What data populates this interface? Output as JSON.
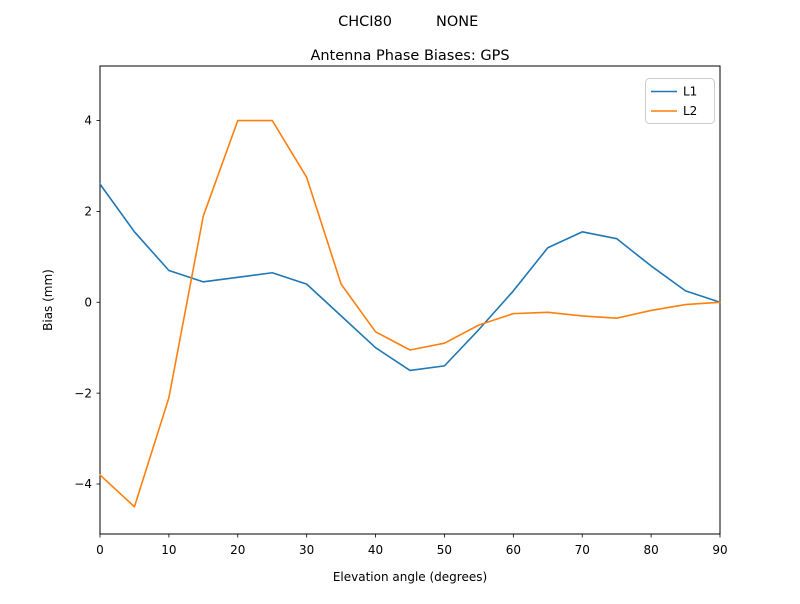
{
  "chart_data": {
    "type": "line",
    "suptitle_left": "CHCI80",
    "suptitle_right": "NONE",
    "title": "Antenna Phase Biases: GPS",
    "xlabel": "Elevation angle (degrees)",
    "ylabel": "Bias (mm)",
    "x": [
      0,
      5,
      10,
      15,
      20,
      25,
      30,
      35,
      40,
      45,
      50,
      55,
      60,
      65,
      70,
      75,
      80,
      85,
      90
    ],
    "series": [
      {
        "name": "L1",
        "color": "#1f77b4",
        "values": [
          2.6,
          1.55,
          0.7,
          0.45,
          0.55,
          0.65,
          0.4,
          -0.3,
          -1.0,
          -1.5,
          -1.4,
          -0.6,
          0.25,
          1.2,
          1.55,
          1.4,
          0.8,
          0.25,
          0.0
        ]
      },
      {
        "name": "L2",
        "color": "#ff7f0e",
        "values": [
          -3.8,
          -4.5,
          -2.1,
          1.9,
          4.0,
          4.0,
          2.75,
          0.4,
          -0.65,
          -1.05,
          -0.9,
          -0.5,
          -0.25,
          -0.22,
          -0.3,
          -0.35,
          -0.18,
          -0.05,
          0.0
        ]
      }
    ],
    "xlim": [
      0,
      90
    ],
    "ylim": [
      -5.1,
      5.2
    ],
    "xticks": [
      0,
      10,
      20,
      30,
      40,
      50,
      60,
      70,
      80,
      90
    ],
    "xtick_labels": [
      "0",
      "10",
      "20",
      "30",
      "40",
      "50",
      "60",
      "70",
      "80",
      "90"
    ],
    "yticks": [
      -4,
      -2,
      0,
      2,
      4
    ],
    "ytick_labels": [
      "−4",
      "−2",
      "0",
      "2",
      "4"
    ],
    "grid": false,
    "legend": {
      "position": "upper right",
      "items": [
        {
          "label": "L1",
          "color": "#1f77b4"
        },
        {
          "label": "L2",
          "color": "#ff7f0e"
        }
      ]
    },
    "axis_color": "#000000",
    "legend_border_color": "#cccccc"
  }
}
